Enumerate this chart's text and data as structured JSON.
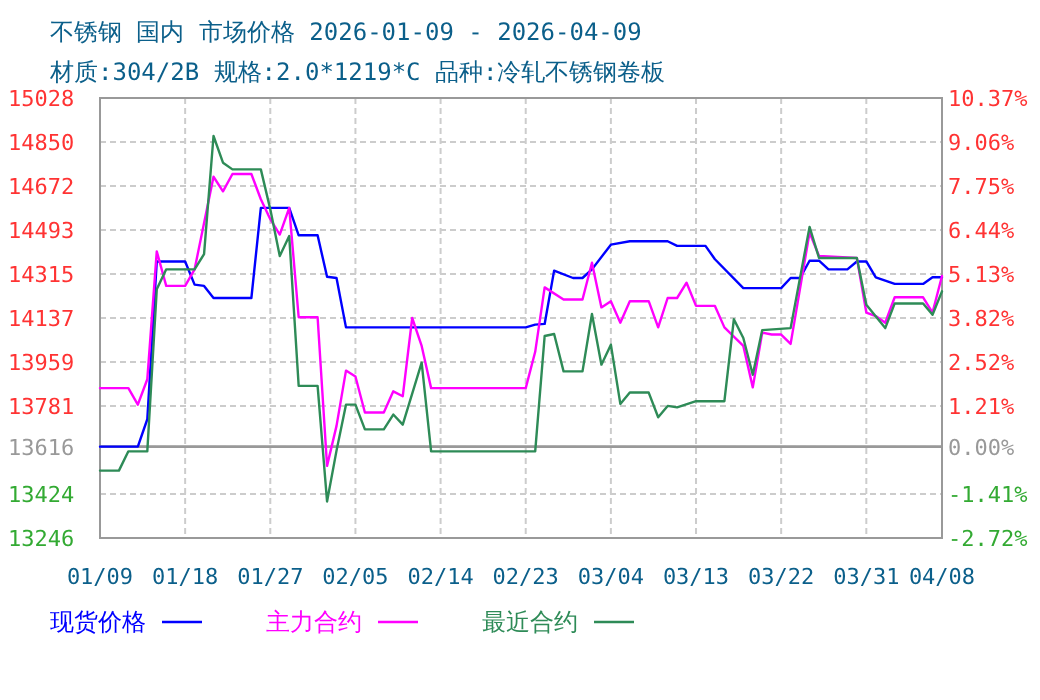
{
  "chart_data": {
    "type": "line",
    "title": "不锈钢 国内 市场价格 2026-01-09 - 2026-04-09",
    "subtitle": "材质:304/2B 规格:2.0*1219*C 品种:冷轧不锈钢卷板",
    "xlim": [
      "2026-01-09",
      "2026-04-08"
    ],
    "xticks": [
      {
        "value": "2026-01-09",
        "label": "01/09"
      },
      {
        "value": "2026-01-18",
        "label": "01/18"
      },
      {
        "value": "2026-01-27",
        "label": "01/27"
      },
      {
        "value": "2026-02-05",
        "label": "02/05"
      },
      {
        "value": "2026-02-14",
        "label": "02/14"
      },
      {
        "value": "2026-02-23",
        "label": "02/23"
      },
      {
        "value": "2026-03-04",
        "label": "03/04"
      },
      {
        "value": "2026-03-13",
        "label": "03/13"
      },
      {
        "value": "2026-03-22",
        "label": "03/22"
      },
      {
        "value": "2026-03-31",
        "label": "03/31"
      },
      {
        "value": "2026-04-08",
        "label": "04/08"
      }
    ],
    "ylim": [
      13246,
      15028
    ],
    "yticks": [
      13246,
      13424,
      13616,
      13781,
      13959,
      14137,
      14315,
      14493,
      14672,
      14850,
      15028
    ],
    "y2lim": [
      -2.72,
      10.37
    ],
    "y2ticks": [
      {
        "value": -2.72,
        "label": "-2.72%"
      },
      {
        "value": -1.41,
        "label": "-1.41%"
      },
      {
        "value": 0,
        "label": "0.00%"
      },
      {
        "value": 1.21,
        "label": "1.21%"
      },
      {
        "value": 2.52,
        "label": "2.52%"
      },
      {
        "value": 3.82,
        "label": "3.82%"
      },
      {
        "value": 5.13,
        "label": "5.13%"
      },
      {
        "value": 6.44,
        "label": "6.44%"
      },
      {
        "value": 7.75,
        "label": "7.75%"
      },
      {
        "value": 9.06,
        "label": "9.06%"
      },
      {
        "value": 10.37,
        "label": "10.37%"
      }
    ],
    "grid": true,
    "legend": "bottom",
    "ref_lines": [
      {
        "axis": "y",
        "value": 13616,
        "color": "#999999"
      }
    ],
    "series": [
      {
        "name": "现货价格",
        "color": "#0000ff",
        "x": [
          "2026-01-09",
          "2026-01-13",
          "2026-01-14",
          "2026-01-15",
          "2026-01-18",
          "2026-01-19",
          "2026-01-20",
          "2026-01-21",
          "2026-01-25",
          "2026-01-26",
          "2026-01-29",
          "2026-01-30",
          "2026-02-01",
          "2026-02-02",
          "2026-02-03",
          "2026-02-04",
          "2026-02-23",
          "2026-02-24",
          "2026-02-25",
          "2026-02-26",
          "2026-02-28",
          "2026-03-01",
          "2026-03-02",
          "2026-03-04",
          "2026-03-06",
          "2026-03-10",
          "2026-03-11",
          "2026-03-14",
          "2026-03-15",
          "2026-03-18",
          "2026-03-22",
          "2026-03-23",
          "2026-03-24",
          "2026-03-25",
          "2026-03-26",
          "2026-03-27",
          "2026-03-29",
          "2026-03-30",
          "2026-03-31",
          "2026-04-01",
          "2026-04-03",
          "2026-04-06",
          "2026-04-07",
          "2026-04-08"
        ],
        "values": [
          13616,
          13616,
          13727,
          14366,
          14366,
          14272,
          14267,
          14218,
          14218,
          14583,
          14583,
          14472,
          14472,
          14304,
          14299,
          14099,
          14099,
          14110,
          14113,
          14329,
          14299,
          14299,
          14334,
          14434,
          14448,
          14448,
          14429,
          14429,
          14375,
          14258,
          14258,
          14299,
          14299,
          14369,
          14369,
          14334,
          14334,
          14366,
          14366,
          14302,
          14275,
          14275,
          14302,
          14302
        ]
      },
      {
        "name": "主力合约",
        "color": "#ff00ff",
        "x": [
          "2026-01-09",
          "2026-01-12",
          "2026-01-13",
          "2026-01-14",
          "2026-01-15",
          "2026-01-16",
          "2026-01-18",
          "2026-01-19",
          "2026-01-21",
          "2026-01-22",
          "2026-01-23",
          "2026-01-25",
          "2026-01-26",
          "2026-01-27",
          "2026-01-28",
          "2026-01-29",
          "2026-01-30",
          "2026-02-01",
          "2026-02-02",
          "2026-02-03",
          "2026-02-04",
          "2026-02-05",
          "2026-02-06",
          "2026-02-08",
          "2026-02-09",
          "2026-02-10",
          "2026-02-11",
          "2026-02-12",
          "2026-02-13",
          "2026-02-23",
          "2026-02-24",
          "2026-02-25",
          "2026-02-27",
          "2026-03-01",
          "2026-03-02",
          "2026-03-03",
          "2026-03-04",
          "2026-03-05",
          "2026-03-06",
          "2026-03-08",
          "2026-03-09",
          "2026-03-10",
          "2026-03-11",
          "2026-03-12",
          "2026-03-13",
          "2026-03-15",
          "2026-03-16",
          "2026-03-18",
          "2026-03-19",
          "2026-03-20",
          "2026-03-21",
          "2026-03-22",
          "2026-03-23",
          "2026-03-25",
          "2026-03-26",
          "2026-03-30",
          "2026-03-31",
          "2026-04-01",
          "2026-04-02",
          "2026-04-03",
          "2026-04-06",
          "2026-04-07",
          "2026-04-08"
        ],
        "values": [
          13853,
          13853,
          13786,
          13889,
          14407,
          14267,
          14267,
          14334,
          14709,
          14650,
          14720,
          14720,
          14618,
          14537,
          14475,
          14583,
          14140,
          14140,
          13538,
          13700,
          13924,
          13900,
          13754,
          13754,
          13840,
          13820,
          14137,
          14024,
          13853,
          13853,
          14000,
          14261,
          14212,
          14212,
          14361,
          14180,
          14205,
          14118,
          14205,
          14205,
          14099,
          14218,
          14218,
          14280,
          14186,
          14186,
          14099,
          14024,
          13856,
          14078,
          14070,
          14070,
          14032,
          14483,
          14388,
          14380,
          14159,
          14145,
          14118,
          14221,
          14221,
          14159,
          14307
        ]
      },
      {
        "name": "最近合约",
        "color": "#2e8b57",
        "x": [
          "2026-01-09",
          "2026-01-11",
          "2026-01-12",
          "2026-01-14",
          "2026-01-15",
          "2026-01-16",
          "2026-01-19",
          "2026-01-20",
          "2026-01-21",
          "2026-01-22",
          "2026-01-23",
          "2026-01-26",
          "2026-01-27",
          "2026-01-28",
          "2026-01-29",
          "2026-01-30",
          "2026-02-01",
          "2026-02-02",
          "2026-02-03",
          "2026-02-04",
          "2026-02-05",
          "2026-02-06",
          "2026-02-08",
          "2026-02-09",
          "2026-02-10",
          "2026-02-12",
          "2026-02-13",
          "2026-02-24",
          "2026-02-25",
          "2026-02-26",
          "2026-02-27",
          "2026-03-01",
          "2026-03-02",
          "2026-03-03",
          "2026-03-04",
          "2026-03-05",
          "2026-03-06",
          "2026-03-08",
          "2026-03-09",
          "2026-03-10",
          "2026-03-11",
          "2026-03-13",
          "2026-03-16",
          "2026-03-17",
          "2026-03-18",
          "2026-03-19",
          "2026-03-20",
          "2026-03-23",
          "2026-03-25",
          "2026-03-26",
          "2026-03-30",
          "2026-03-31",
          "2026-04-02",
          "2026-04-03",
          "2026-04-06",
          "2026-04-07",
          "2026-04-08"
        ],
        "values": [
          13519,
          13519,
          13597,
          13597,
          14253,
          14334,
          14334,
          14396,
          14874,
          14766,
          14739,
          14739,
          14577,
          14388,
          14469,
          13862,
          13862,
          13394,
          13600,
          13786,
          13786,
          13686,
          13686,
          13746,
          13705,
          13956,
          13597,
          13597,
          14064,
          14072,
          13921,
          13921,
          14153,
          13948,
          14029,
          13789,
          13835,
          13835,
          13735,
          13781,
          13775,
          13800,
          13800,
          14132,
          14056,
          13907,
          14088,
          14096,
          14506,
          14380,
          14380,
          14191,
          14096,
          14196,
          14196,
          14150,
          14245
        ]
      }
    ]
  }
}
